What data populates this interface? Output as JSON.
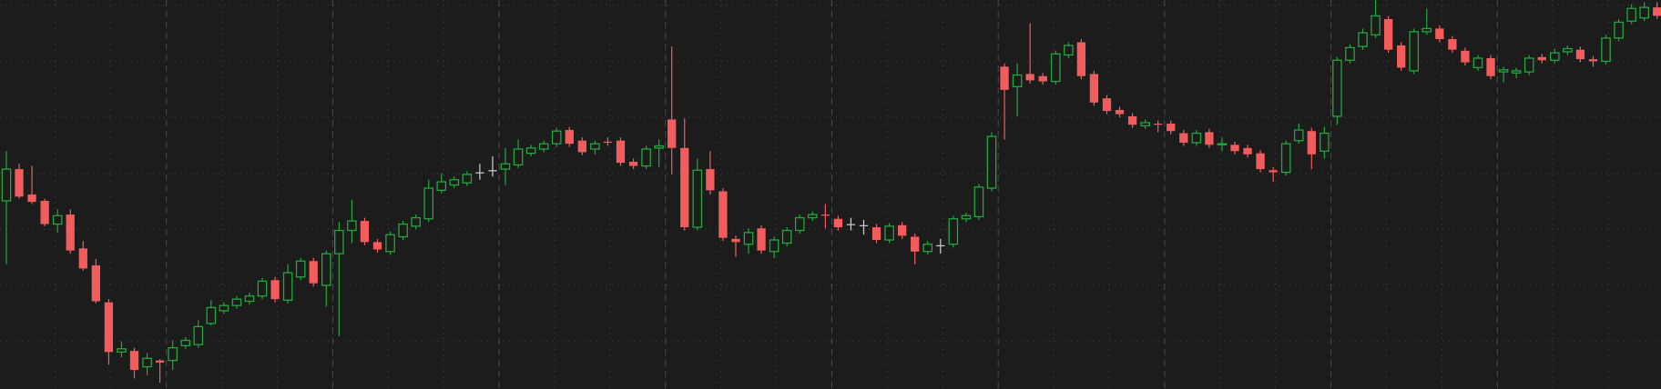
{
  "chart_data": {
    "type": "candlestick",
    "up_color": "#1fa83a",
    "down_color": "#f25c5c",
    "flat_color": "#d0d0d0",
    "grid": true,
    "ylim": [
      0,
      368
    ],
    "open": [
      178,
      208,
      184,
      178,
      156,
      165,
      133,
      117,
      82,
      35,
      36,
      21,
      27,
      27,
      41,
      42,
      62,
      74,
      79,
      83,
      88,
      103,
      84,
      106,
      121,
      98,
      128,
      150,
      159,
      139,
      130,
      144,
      154,
      161,
      188,
      193,
      195,
      205,
      207,
      208,
      212,
      223,
      227,
      232,
      245,
      235,
      227,
      234,
      235,
      215,
      211,
      228,
      255,
      228,
      153,
      208,
      187,
      142,
      137,
      152,
      130,
      138,
      150,
      162,
      165,
      161,
      156,
      155,
      153,
      141,
      155,
      144,
      130,
      136,
      137,
      161,
      163,
      190,
      305,
      286,
      298,
      296,
      291,
      316,
      328,
      298,
      275,
      264,
      258,
      249,
      251,
      251,
      242,
      233,
      243,
      231,
      231,
      228,
      223,
      207,
      205,
      235,
      244,
      225,
      258,
      311,
      324,
      335,
      350,
      325,
      301,
      338,
      341,
      331,
      320,
      304,
      313,
      300,
      299,
      300,
      314,
      311,
      319,
      321,
      312,
      310,
      332,
      348,
      351,
      361
    ],
    "high": [
      225,
      213,
      211,
      180,
      170,
      170,
      140,
      123,
      85,
      45,
      39,
      34,
      28,
      46,
      49,
      65,
      84,
      82,
      88,
      91,
      105,
      106,
      118,
      124,
      124,
      131,
      158,
      179,
      162,
      142,
      149,
      159,
      165,
      198,
      204,
      201,
      206,
      213,
      220,
      228,
      236,
      231,
      235,
      247,
      248,
      238,
      235,
      238,
      238,
      218,
      230,
      236,
      324,
      256,
      218,
      225,
      190,
      145,
      152,
      155,
      144,
      153,
      165,
      168,
      175,
      164,
      162,
      160,
      156,
      157,
      158,
      147,
      140,
      142,
      164,
      167,
      194,
      243,
      308,
      308,
      346,
      299,
      320,
      328,
      331,
      301,
      278,
      267,
      261,
      255,
      254,
      254,
      245,
      245,
      246,
      238,
      234,
      231,
      226,
      210,
      235,
      251,
      247,
      248,
      314,
      326,
      341,
      368,
      353,
      328,
      341,
      360,
      344,
      334,
      323,
      316,
      316,
      305,
      304,
      316,
      317,
      322,
      325,
      324,
      315,
      335,
      350,
      364,
      366,
      366
    ],
    "low": [
      118,
      180,
      175,
      154,
      148,
      128,
      112,
      81,
      23,
      30,
      10,
      13,
      6,
      18,
      38,
      39,
      60,
      71,
      76,
      80,
      85,
      82,
      81,
      103,
      97,
      78,
      50,
      138,
      136,
      129,
      127,
      141,
      151,
      158,
      185,
      190,
      192,
      198,
      201,
      193,
      209,
      220,
      224,
      229,
      229,
      221,
      222,
      230,
      211,
      208,
      208,
      210,
      203,
      150,
      150,
      184,
      140,
      125,
      128,
      128,
      124,
      135,
      147,
      159,
      152,
      150,
      150,
      146,
      138,
      138,
      142,
      118,
      127,
      128,
      134,
      158,
      160,
      187,
      236,
      258,
      289,
      288,
      288,
      313,
      293,
      268,
      260,
      257,
      247,
      246,
      243,
      241,
      230,
      230,
      228,
      225,
      222,
      219,
      205,
      196,
      202,
      232,
      208,
      218,
      250,
      308,
      321,
      332,
      318,
      301,
      298,
      335,
      328,
      318,
      306,
      301,
      293,
      290,
      294,
      297,
      308,
      308,
      316,
      309,
      305,
      307,
      329,
      345,
      348,
      350
    ],
    "close": [
      208,
      182,
      177,
      156,
      164,
      131,
      114,
      83,
      35,
      38,
      18,
      29,
      25,
      39,
      46,
      59,
      77,
      79,
      85,
      88,
      102,
      85,
      110,
      121,
      100,
      128,
      150,
      159,
      139,
      132,
      146,
      156,
      162,
      190,
      196,
      198,
      203,
      205,
      207,
      213,
      227,
      228,
      232,
      244,
      232,
      224,
      232,
      233,
      214,
      211,
      227,
      230,
      228,
      153,
      207,
      188,
      143,
      139,
      148,
      131,
      141,
      150,
      162,
      165,
      164,
      153,
      156,
      155,
      141,
      154,
      145,
      130,
      137,
      136,
      161,
      164,
      191,
      239,
      283,
      297,
      292,
      291,
      317,
      325,
      296,
      271,
      263,
      260,
      250,
      252,
      250,
      244,
      233,
      242,
      231,
      232,
      225,
      222,
      208,
      205,
      232,
      245,
      222,
      242,
      311,
      323,
      337,
      353,
      321,
      304,
      338,
      341,
      331,
      321,
      309,
      313,
      296,
      302,
      301,
      313,
      311,
      318,
      322,
      312,
      310,
      332,
      347,
      360,
      361,
      353
    ]
  }
}
